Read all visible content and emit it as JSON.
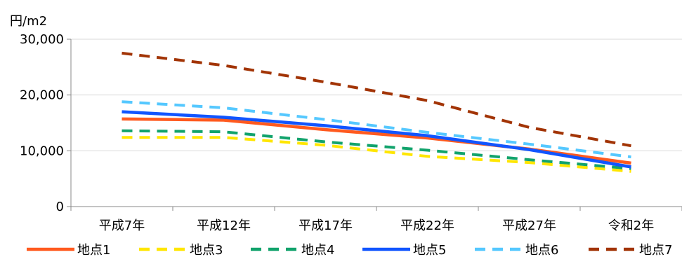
{
  "chart_data": {
    "type": "line",
    "title": "",
    "xlabel": "",
    "ylabel": "円/m2",
    "ylim": [
      0,
      30000
    ],
    "yticks": [
      0,
      10000,
      20000,
      30000
    ],
    "ytick_labels": [
      "0",
      "10,000",
      "20,000",
      "30,000"
    ],
    "grid": "horizontal",
    "legend_position": "bottom",
    "categories": [
      "平成7年",
      "平成12年",
      "平成17年",
      "平成22年",
      "平成27年",
      "令和2年"
    ],
    "series": [
      {
        "name": "地点1",
        "color": "#FF5A1F",
        "style": "solid",
        "values": [
          15700,
          15500,
          13800,
          12300,
          10300,
          7800
        ]
      },
      {
        "name": "地点3",
        "color": "#FFE600",
        "style": "dashed",
        "values": [
          12400,
          12400,
          11000,
          9000,
          7900,
          6300
        ]
      },
      {
        "name": "地点4",
        "color": "#12A36C",
        "style": "dashed",
        "values": [
          13600,
          13400,
          11600,
          10100,
          8400,
          6800
        ]
      },
      {
        "name": "地点5",
        "color": "#1155FF",
        "style": "solid",
        "values": [
          17000,
          16000,
          14500,
          12700,
          10200,
          7100
        ]
      },
      {
        "name": "地点6",
        "color": "#55C8FF",
        "style": "dashed",
        "values": [
          18800,
          17700,
          15600,
          13300,
          11200,
          8900
        ]
      },
      {
        "name": "地点7",
        "color": "#A23405",
        "style": "dashed",
        "values": [
          27500,
          25300,
          22300,
          19000,
          14200,
          10900
        ]
      }
    ]
  }
}
